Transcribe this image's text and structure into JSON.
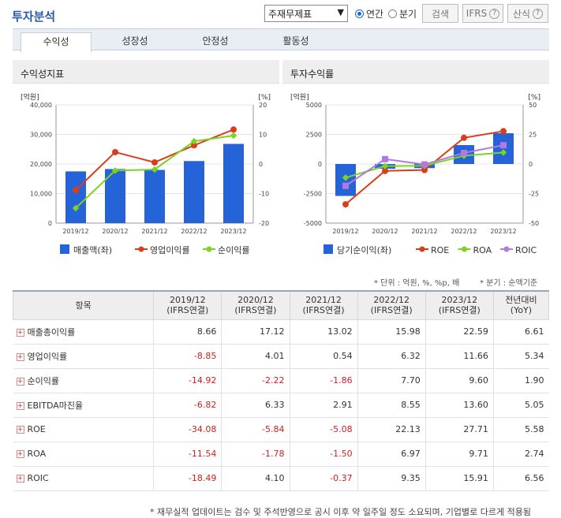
{
  "header": {
    "title": "투자분석",
    "select_value": "주재무제표",
    "radio_annual": "연간",
    "radio_quarter": "분기",
    "btn_search": "검색",
    "btn_ifrs": "IFRS",
    "btn_formula": "산식"
  },
  "tabs": [
    "수익성",
    "성장성",
    "안정성",
    "활동성"
  ],
  "colors": {
    "bar": "#2563d9",
    "op": "#d93d1a",
    "net": "#7ed321",
    "roe": "#d93d1a",
    "roa": "#7ed321",
    "roic": "#b07ae0"
  },
  "chart_data": [
    {
      "type": "bar",
      "title": "수익성지표",
      "left_unit": "[억원]",
      "right_unit": "[%]",
      "categories": [
        "2019/12",
        "2020/12",
        "2021/12",
        "2022/12",
        "2023/12"
      ],
      "left_ticks": [
        "40,000",
        "30,000",
        "20,000",
        "10,000",
        "0"
      ],
      "right_ticks": [
        "20",
        "10",
        "0",
        "-10",
        "-20"
      ],
      "ylim_left": [
        0,
        40000
      ],
      "ylim_right": [
        -20,
        20
      ],
      "series": [
        {
          "name": "매출액(좌)",
          "kind": "bar",
          "axis": "left",
          "values": [
            17500,
            18300,
            18000,
            21000,
            26800
          ]
        },
        {
          "name": "영업이익률",
          "kind": "line",
          "axis": "right",
          "values": [
            -8.85,
            4.01,
            0.54,
            6.32,
            11.66
          ]
        },
        {
          "name": "순이익률",
          "kind": "line",
          "axis": "right",
          "values": [
            -14.92,
            -2.22,
            -1.86,
            7.7,
            9.6
          ]
        }
      ]
    },
    {
      "type": "bar",
      "title": "투자수익률",
      "left_unit": "[억원]",
      "right_unit": "[%]",
      "categories": [
        "2019/12",
        "2020/12",
        "2021/12",
        "2022/12",
        "2023/12"
      ],
      "left_ticks": [
        "5000",
        "2500",
        "0",
        "-2500",
        "-5000"
      ],
      "right_ticks": [
        "50",
        "25",
        "0",
        "-25",
        "-50"
      ],
      "ylim_left": [
        -5000,
        5000
      ],
      "ylim_right": [
        -50,
        50
      ],
      "series": [
        {
          "name": "당기순이익(좌)",
          "kind": "bar",
          "axis": "left",
          "values": [
            -2700,
            -400,
            -350,
            1600,
            2600
          ]
        },
        {
          "name": "ROE",
          "kind": "line",
          "axis": "right",
          "values": [
            -34.08,
            -5.84,
            -5.08,
            22.13,
            27.71
          ]
        },
        {
          "name": "ROA",
          "kind": "line",
          "axis": "right",
          "values": [
            -11.54,
            -1.78,
            -1.5,
            6.97,
            9.71
          ]
        },
        {
          "name": "ROIC",
          "kind": "line",
          "axis": "right",
          "values": [
            -18.49,
            4.1,
            -0.37,
            9.35,
            15.91
          ]
        }
      ]
    }
  ],
  "notes": {
    "unit": "* 단위 : 억원, %, %p, 배",
    "quarter": "* 분기 : 순액기준"
  },
  "table": {
    "headers": [
      "항목",
      "2019/12",
      "2020/12",
      "2021/12",
      "2022/12",
      "2023/12",
      "전년대비"
    ],
    "subheaders": [
      "",
      "(IFRS연결)",
      "(IFRS연결)",
      "(IFRS연결)",
      "(IFRS연결)",
      "(IFRS연결)",
      "(YoY)"
    ],
    "rows": [
      [
        "매출총이익률",
        "8.66",
        "17.12",
        "13.02",
        "15.98",
        "22.59",
        "6.61"
      ],
      [
        "영업이익률",
        "-8.85",
        "4.01",
        "0.54",
        "6.32",
        "11.66",
        "5.34"
      ],
      [
        "순이익률",
        "-14.92",
        "-2.22",
        "-1.86",
        "7.70",
        "9.60",
        "1.90"
      ],
      [
        "EBITDA마진율",
        "-6.82",
        "6.33",
        "2.91",
        "8.55",
        "13.60",
        "5.05"
      ],
      [
        "ROE",
        "-34.08",
        "-5.84",
        "-5.08",
        "22.13",
        "27.71",
        "5.58"
      ],
      [
        "ROA",
        "-11.54",
        "-1.78",
        "-1.50",
        "6.97",
        "9.71",
        "2.74"
      ],
      [
        "ROIC",
        "-18.49",
        "4.10",
        "-0.37",
        "9.35",
        "15.91",
        "6.56"
      ]
    ]
  },
  "footer": "* 재무실적 업데이트는 검수 및 주석반영으로 공시 이후 약 일주일 정도 소요되며, 기업별로 다르게 적용됨"
}
